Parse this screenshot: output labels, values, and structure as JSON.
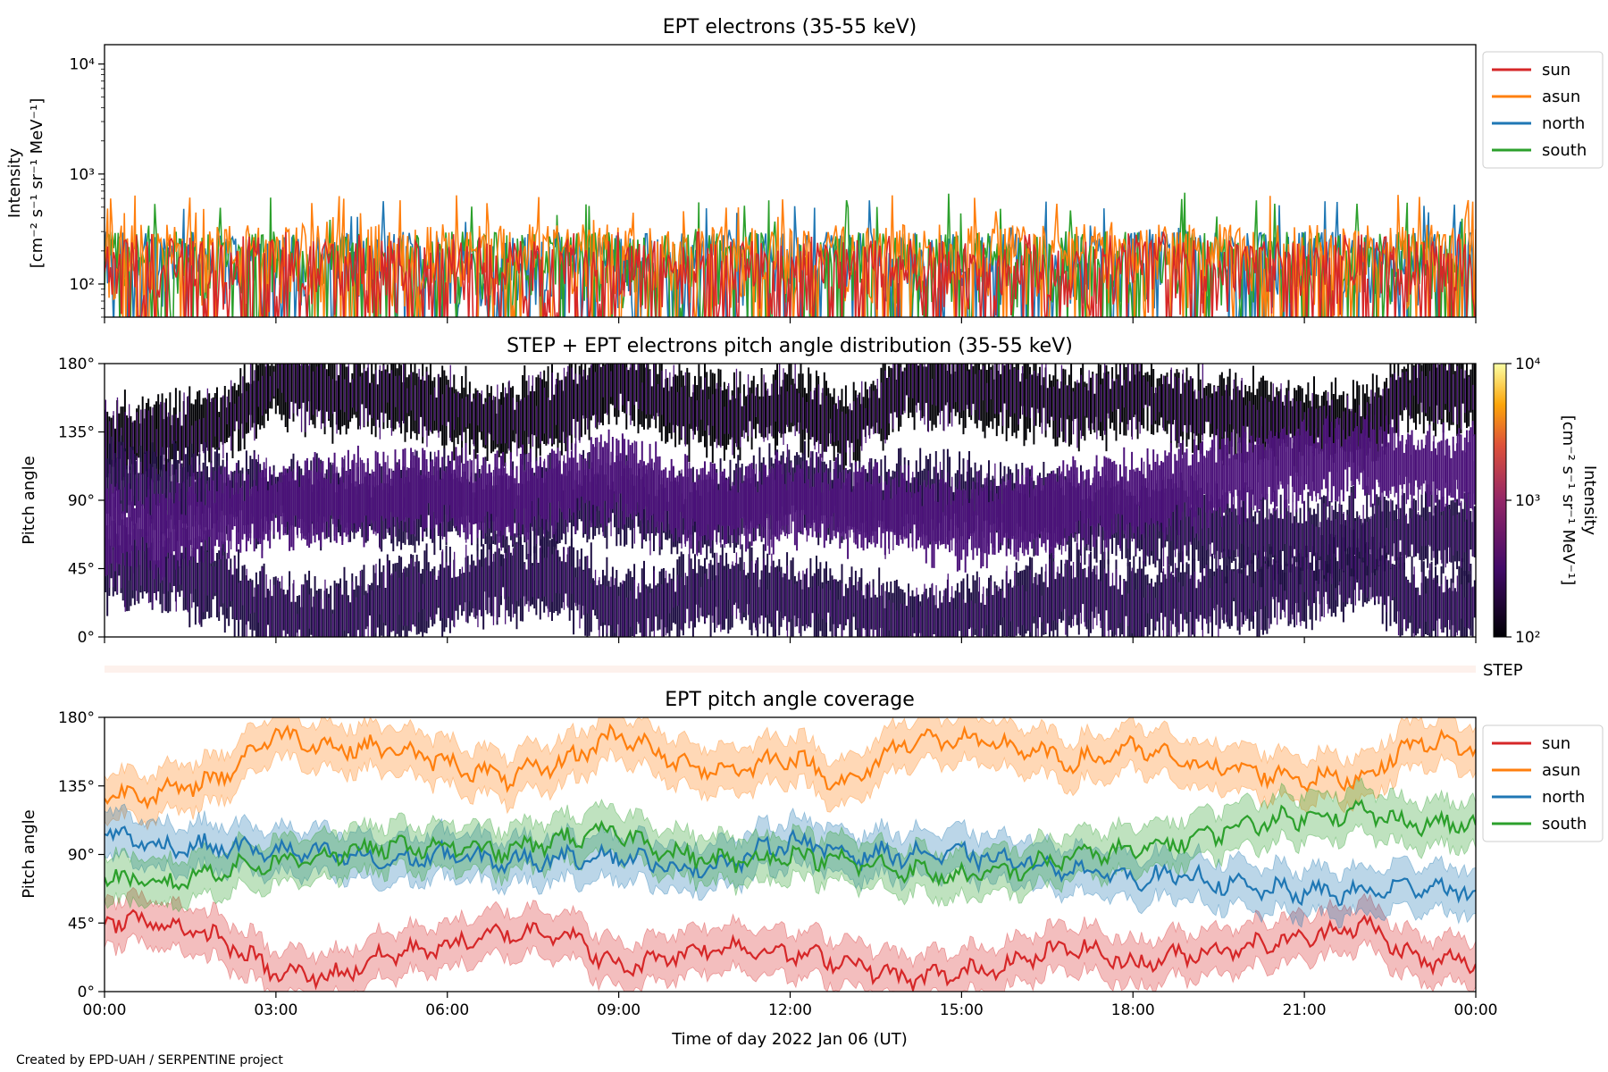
{
  "credit": "Created by EPD-UAH / SERPENTINE project",
  "xlabel": "Time of day 2022 Jan 06 (UT)",
  "x_ticks": [
    "00:00",
    "03:00",
    "06:00",
    "09:00",
    "12:00",
    "15:00",
    "18:00",
    "21:00",
    "00:00"
  ],
  "colors": {
    "sun": "#d62728",
    "asun": "#ff7f0e",
    "north": "#1f77b4",
    "south": "#2ca02c"
  },
  "chart_data": [
    {
      "type": "line",
      "title": "EPT electrons (35-55 keV)",
      "ylabel_line1": "Intensity",
      "ylabel_line2": "[cm⁻² s⁻¹ sr⁻¹ MeV⁻¹]",
      "yscale": "log",
      "ylim": [
        50,
        15000
      ],
      "y_ticks": [
        "10²",
        "10³",
        "10⁴"
      ],
      "x": [
        "00:00",
        "03:00",
        "06:00",
        "09:00",
        "12:00",
        "15:00",
        "18:00",
        "21:00",
        "24:00"
      ],
      "legend": "upper-right outside",
      "series": [
        {
          "name": "sun",
          "typical_range": [
            50,
            250
          ],
          "spikes_max": 300
        },
        {
          "name": "asun",
          "typical_range": [
            60,
            350
          ],
          "spikes_max": 650
        },
        {
          "name": "north",
          "typical_range": [
            60,
            300
          ],
          "spikes_max": 600
        },
        {
          "name": "south",
          "typical_range": [
            60,
            300
          ],
          "spikes_max": 700
        }
      ]
    },
    {
      "type": "heatmap",
      "title": "STEP + EPT electrons pitch angle distribution (35-55 keV)",
      "ylabel": "Pitch angle",
      "ylim": [
        0,
        180
      ],
      "y_ticks": [
        "0°",
        "45°",
        "90°",
        "135°",
        "180°"
      ],
      "colorbar": {
        "label_line1": "Intensity",
        "label_line2": "[cm⁻² s⁻¹ sr⁻¹ MeV⁻¹]",
        "range": [
          100,
          10000
        ],
        "scale": "log",
        "ticks": [
          "10²",
          "10³",
          "10⁴"
        ]
      },
      "step_label": "STEP"
    },
    {
      "type": "line",
      "title": "EPT pitch angle coverage",
      "ylabel": "Pitch angle",
      "ylim": [
        0,
        180
      ],
      "y_ticks": [
        "0°",
        "45°",
        "90°",
        "135°",
        "180°"
      ],
      "x": [
        0,
        1,
        2,
        3,
        4,
        5,
        6,
        7,
        8,
        9,
        10,
        11,
        12,
        13,
        14,
        15,
        16,
        17,
        18,
        19,
        20,
        21,
        22,
        23,
        24
      ],
      "legend": "upper-right outside",
      "series": [
        {
          "name": "sun",
          "values": [
            48,
            45,
            35,
            12,
            10,
            25,
            30,
            38,
            40,
            15,
            25,
            30,
            25,
            20,
            8,
            12,
            20,
            30,
            18,
            25,
            30,
            35,
            45,
            20,
            20
          ]
        },
        {
          "name": "asun",
          "values": [
            130,
            130,
            140,
            170,
            160,
            160,
            150,
            140,
            150,
            170,
            150,
            145,
            155,
            135,
            165,
            165,
            160,
            150,
            160,
            150,
            145,
            140,
            140,
            165,
            160
          ]
        },
        {
          "name": "north",
          "values": [
            105,
            95,
            95,
            92,
            90,
            85,
            90,
            85,
            88,
            90,
            80,
            85,
            100,
            90,
            90,
            90,
            85,
            80,
            75,
            75,
            68,
            65,
            65,
            70,
            65
          ]
        },
        {
          "name": "south",
          "values": [
            75,
            70,
            80,
            85,
            90,
            95,
            95,
            92,
            100,
            105,
            90,
            85,
            90,
            85,
            80,
            75,
            80,
            90,
            92,
            100,
            110,
            115,
            118,
            110,
            110
          ]
        }
      ]
    }
  ]
}
